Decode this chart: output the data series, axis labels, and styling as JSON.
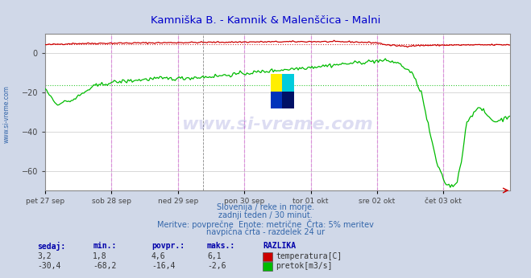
{
  "title": "Kamniška B. - Kamnik & Malenščica - Malni",
  "title_color": "#0000cc",
  "bg_color": "#d0d8e8",
  "plot_bg_color": "#ffffff",
  "grid_color": "#c8c8c8",
  "xlim": [
    0,
    336
  ],
  "ylim": [
    -70,
    10
  ],
  "yticks": [
    -60,
    -40,
    -20,
    0
  ],
  "xlabel_ticks": [
    0,
    48,
    96,
    144,
    192,
    240,
    288
  ],
  "xlabel_labels": [
    "pet 27 sep",
    "sob 28 sep",
    "ned 29 sep",
    "pon 30 sep",
    "tor 01 okt",
    "sre 02 okt",
    "čet 03 okt"
  ],
  "vline_color_major": "#ff00ff",
  "vline_color_minor": "#888888",
  "hline_red_dotted": 4.6,
  "hline_green_dotted": -16.4,
  "temp_color": "#cc0000",
  "flow_color": "#00bb00",
  "watermark_text": "www.si-vreme.com",
  "watermark_color": "#4444bb",
  "watermark_alpha": 0.18,
  "sub_text1": "Slovenija / reke in morje.",
  "sub_text2": "zadnji teden / 30 minut.",
  "sub_text3": "Meritve: povprečne  Enote: metrične  Črta: 5% meritev",
  "sub_text4": "navpična črta - razdelek 24 ur",
  "sub_color": "#3366aa",
  "footer_color": "#0000aa",
  "legend_items": [
    {
      "label": "temperatura[C]",
      "color": "#cc0000"
    },
    {
      "label": "pretok[m3/s]",
      "color": "#00bb00"
    }
  ],
  "stats_headers": [
    "sedaj:",
    "min.:",
    "povpr.:",
    "maks.:",
    "RAZLIKA"
  ],
  "stats_temp": [
    "3,2",
    "1,8",
    "4,6",
    "6,1"
  ],
  "stats_flow": [
    "-30,4",
    "-68,2",
    "-16,4",
    "-2,6"
  ],
  "right_arrow_color": "#cc0000",
  "sivreme_text_color": "#3366aa"
}
